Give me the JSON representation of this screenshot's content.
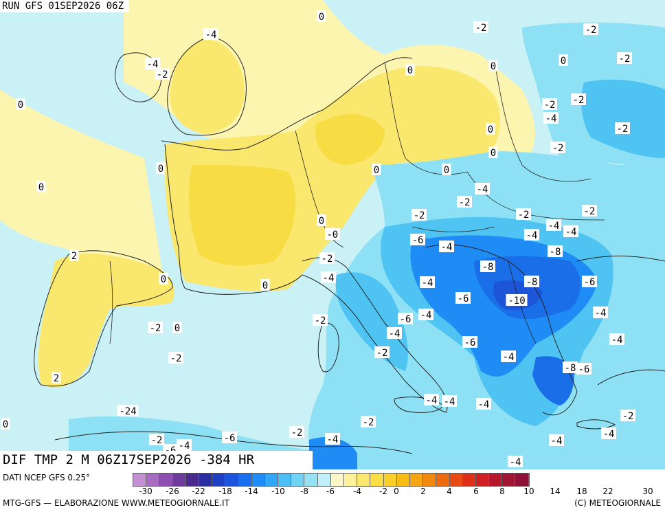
{
  "header": {
    "run_title": "RUN GFS 01SEP2026 06Z"
  },
  "field_title": "DIF TMP 2 M 06Z17SEP2026 -384 HR",
  "footer": {
    "data_source": "DATI NCEP GFS 0.25°",
    "credits_left": "MTG-GFS — ELABORAZIONE WWW.METEOGIORNALE.IT",
    "credits_right": "(C) METEOGIORNALE",
    "legend_colors": [
      "#c48fd3",
      "#a86cc2",
      "#8e4fb0",
      "#6f3b9d",
      "#4a2a8c",
      "#2a2ea0",
      "#1f3fc4",
      "#1c55dd",
      "#1a6ff0",
      "#1f8cf7",
      "#32a6f7",
      "#4cc0f5",
      "#70d3f5",
      "#96e2f5",
      "#c1eff7",
      "#fbf7c8",
      "#fdf29b",
      "#fce870",
      "#fbde45",
      "#f9d027",
      "#f7bd15",
      "#f5a511",
      "#f2890f",
      "#ee6a10",
      "#e84a13",
      "#df2f18",
      "#cf1f22",
      "#b8172b",
      "#a11432",
      "#8e1138"
    ],
    "legend_ticks": [
      "-30",
      "-26",
      "-22",
      "-18",
      "-14",
      "-10",
      "-8",
      "-6",
      "-4",
      "-2",
      "0",
      "2",
      "4",
      "6",
      "8",
      "10",
      "14",
      "18",
      "22",
      "30"
    ]
  },
  "map": {
    "colors": {
      "sea_neutral": "#c9f1f6",
      "light_warm": "#fbf5b0",
      "warm": "#fae86e",
      "warmer": "#f8dc44",
      "cool": "#8ee0f4",
      "cooler": "#4fc3f2",
      "cold": "#1f8cf5",
      "colder": "#1a6fe8",
      "coldest": "#1c55d8",
      "border": "#222222"
    },
    "labels": [
      "0",
      "-2",
      "-2",
      "-4",
      "0",
      "-2",
      "-4",
      "-2",
      "0",
      "0",
      "-2",
      "-2",
      "0",
      "-2",
      "-4",
      "0",
      "-2",
      "0",
      "0",
      "0",
      "0",
      "0",
      "-2",
      "-4",
      "-2",
      "-2",
      "-2",
      "0",
      "-2",
      "-4",
      "-4",
      "0",
      "-6",
      "-4",
      "-4",
      "-8",
      "2",
      "-2",
      "-8",
      "0",
      "-4",
      "0",
      "-6",
      "-4",
      "-6",
      "-10",
      "-8",
      "-2",
      "-6",
      "-4",
      "-4",
      "-2",
      "-4",
      "0",
      "-6",
      "-2",
      "-4",
      "-2",
      "-4",
      "-8",
      "-6",
      "2",
      "-4",
      "-4",
      "0",
      "-4",
      "-2",
      "-24",
      "-2",
      "-2",
      "-4",
      "-6",
      "-2",
      "-4",
      "-4",
      "-4",
      "-2",
      "-4",
      "-4",
      "-4",
      "-6"
    ]
  }
}
